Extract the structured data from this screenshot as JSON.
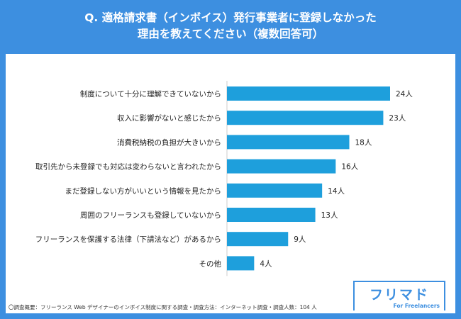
{
  "header": {
    "title_line1": "Q. 適格請求書（インボイス）発行事業者に登録しなかった",
    "title_line2": "理由を教えてください（複数回答可）"
  },
  "chart_data": {
    "type": "bar",
    "orientation": "horizontal",
    "categories": [
      "制度について十分に理解できていないから",
      "収入に影響がないと感じたから",
      "消費税納税の負担が大きいから",
      "取引先から未登録でも対応は変わらないと言われたから",
      "まだ登録しない方がいいという情報を見たから",
      "周囲のフリーランスも登録していないから",
      "フリーランスを保護する法律（下請法など）があるから",
      "その他"
    ],
    "values": [
      24,
      23,
      18,
      16,
      14,
      13,
      9,
      4
    ],
    "value_labels": [
      "24人",
      "23人",
      "18人",
      "16人",
      "14人",
      "13人",
      "9人",
      "4人"
    ],
    "unit": "人",
    "bar_color": "#1e9fdc",
    "xlim": [
      0,
      24
    ]
  },
  "footnote": "〇調査概要：フリーランス Web デザイナーのインボイス制度に関する調査・調査方法：インターネット調査・調査人数：104 人",
  "logo": {
    "name": "フリマド",
    "tagline": "For Freelancers",
    "color": "#3d8fe0"
  }
}
